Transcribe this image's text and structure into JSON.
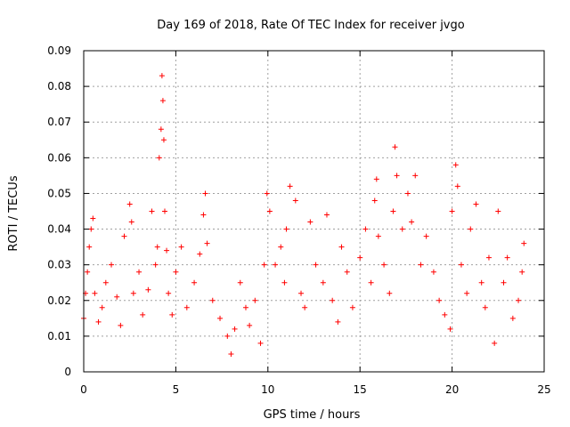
{
  "chart_data": {
    "type": "scatter",
    "title": "Day 169 of 2018, Rate Of TEC Index for receiver jvgo",
    "xlabel": "GPS time / hours",
    "ylabel": "ROTI / TECUs",
    "xlim": [
      0,
      25
    ],
    "ylim": [
      0,
      0.09
    ],
    "x_ticks": [
      "0",
      "5",
      "10",
      "15",
      "20",
      "25"
    ],
    "y_ticks": [
      "0",
      "0.01",
      "0.02",
      "0.03",
      "0.04",
      "0.05",
      "0.06",
      "0.07",
      "0.08",
      "0.09"
    ],
    "grid": true,
    "marker": "+",
    "color": "#ff0000",
    "series": [
      {
        "x": [
          0.0,
          0.1,
          0.2,
          0.3,
          0.4,
          0.5,
          0.6,
          0.8,
          1.0,
          1.2,
          1.5,
          1.8,
          2.0,
          2.2,
          2.5,
          2.6,
          2.7,
          3.0,
          3.2,
          3.5,
          3.7,
          3.9,
          4.0,
          4.1,
          4.2,
          4.25,
          4.3,
          4.35,
          4.4,
          4.5,
          4.6,
          4.8,
          5.0,
          5.3,
          5.6,
          6.0,
          6.3,
          6.5,
          6.6,
          6.7,
          7.0,
          7.4,
          7.8,
          8.0,
          8.2,
          8.5,
          8.8,
          9.0,
          9.3,
          9.6,
          9.8,
          9.95,
          10.1,
          10.4,
          10.7,
          10.9,
          11.0,
          11.2,
          11.5,
          11.8,
          12.0,
          12.3,
          12.6,
          13.0,
          13.2,
          13.5,
          13.8,
          14.0,
          14.3,
          14.6,
          15.0,
          15.3,
          15.6,
          15.8,
          15.9,
          16.0,
          16.3,
          16.6,
          16.8,
          16.9,
          17.0,
          17.3,
          17.6,
          17.8,
          18.0,
          18.3,
          18.6,
          19.0,
          19.3,
          19.6,
          19.9,
          20.0,
          20.2,
          20.3,
          20.5,
          20.8,
          21.0,
          21.3,
          21.6,
          21.8,
          22.0,
          22.3,
          22.5,
          22.8,
          23.0,
          23.3,
          23.6,
          23.8,
          23.9
        ],
        "y": [
          0.015,
          0.022,
          0.028,
          0.035,
          0.04,
          0.043,
          0.022,
          0.014,
          0.018,
          0.025,
          0.03,
          0.021,
          0.013,
          0.038,
          0.047,
          0.042,
          0.022,
          0.028,
          0.016,
          0.023,
          0.045,
          0.03,
          0.035,
          0.06,
          0.068,
          0.083,
          0.076,
          0.065,
          0.045,
          0.034,
          0.022,
          0.016,
          0.028,
          0.035,
          0.018,
          0.025,
          0.033,
          0.044,
          0.05,
          0.036,
          0.02,
          0.015,
          0.01,
          0.005,
          0.012,
          0.025,
          0.018,
          0.013,
          0.02,
          0.008,
          0.03,
          0.05,
          0.045,
          0.03,
          0.035,
          0.025,
          0.04,
          0.052,
          0.048,
          0.022,
          0.018,
          0.042,
          0.03,
          0.025,
          0.044,
          0.02,
          0.014,
          0.035,
          0.028,
          0.018,
          0.032,
          0.04,
          0.025,
          0.048,
          0.054,
          0.038,
          0.03,
          0.022,
          0.045,
          0.063,
          0.055,
          0.04,
          0.05,
          0.042,
          0.055,
          0.03,
          0.038,
          0.028,
          0.02,
          0.016,
          0.012,
          0.045,
          0.058,
          0.052,
          0.03,
          0.022,
          0.04,
          0.047,
          0.025,
          0.018,
          0.032,
          0.008,
          0.045,
          0.025,
          0.032,
          0.015,
          0.02,
          0.028,
          0.036
        ]
      }
    ]
  }
}
